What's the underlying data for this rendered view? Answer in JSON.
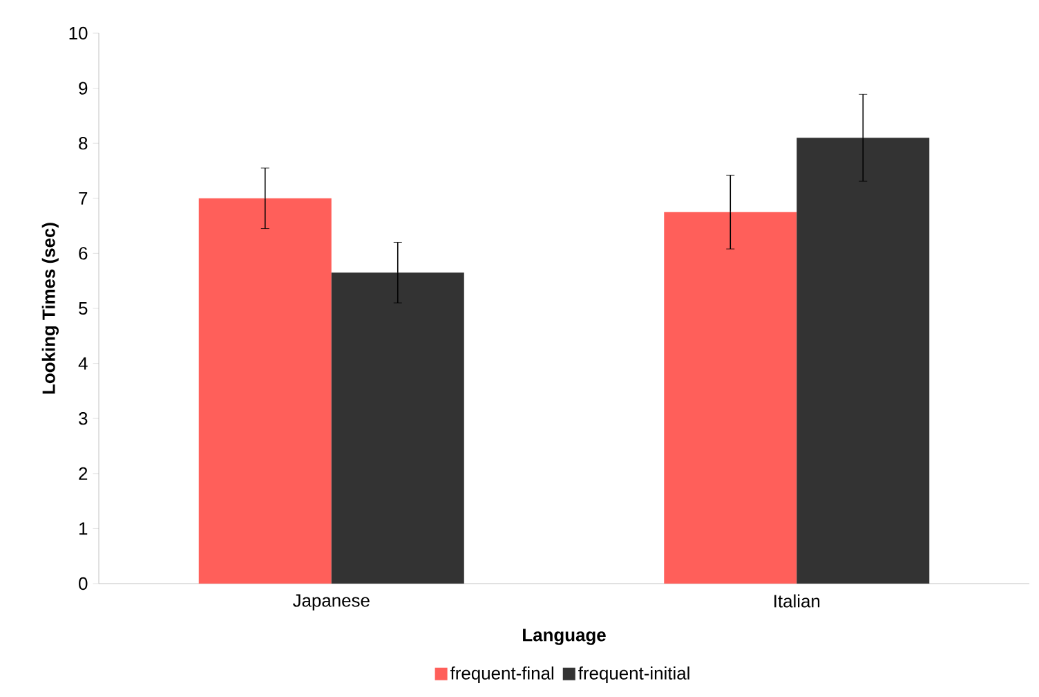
{
  "chart_data": {
    "type": "bar",
    "xlabel": "Language",
    "ylabel": "Looking Times (sec)",
    "categories": [
      "Japanese",
      "Italian"
    ],
    "series": [
      {
        "name": "frequent-final",
        "color": "#ff5f5a",
        "values": [
          7.0,
          6.75
        ],
        "errors": [
          0.55,
          0.67
        ]
      },
      {
        "name": "frequent-initial",
        "color": "#333333",
        "values": [
          5.65,
          8.1
        ],
        "errors": [
          0.55,
          0.79
        ]
      }
    ],
    "ylim": [
      0,
      10
    ],
    "yticks": [
      0,
      1,
      2,
      3,
      4,
      5,
      6,
      7,
      8,
      9,
      10
    ],
    "legend": "bottom",
    "grid": false
  }
}
